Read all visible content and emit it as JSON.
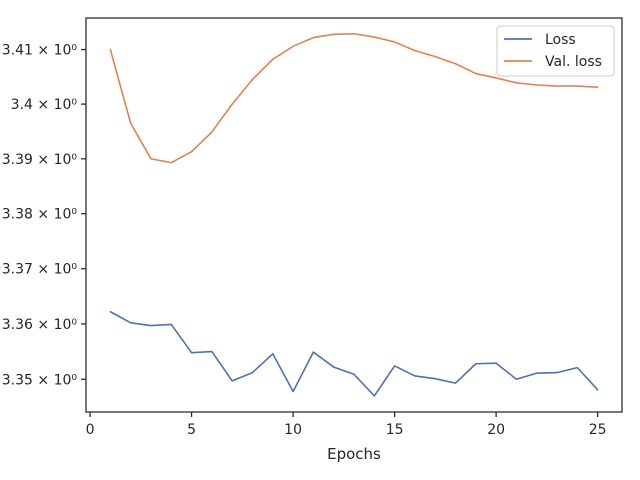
{
  "chart_data": {
    "type": "line",
    "xlabel": "Epochs",
    "ylabel": "",
    "xlim": [
      -0.2,
      26.2
    ],
    "ylim": [
      3.3441,
      3.4158
    ],
    "yscale": "log",
    "grid": false,
    "legend_position": "top-right",
    "x_ticks": [
      {
        "value": 0,
        "label": "0"
      },
      {
        "value": 5,
        "label": "5"
      },
      {
        "value": 10,
        "label": "10"
      },
      {
        "value": 15,
        "label": "15"
      },
      {
        "value": 20,
        "label": "20"
      },
      {
        "value": 25,
        "label": "25"
      }
    ],
    "y_ticks": [
      {
        "value": 3.35,
        "label": "3.35 × 10⁰"
      },
      {
        "value": 3.36,
        "label": "3.36 × 10⁰"
      },
      {
        "value": 3.37,
        "label": "3.37 × 10⁰"
      },
      {
        "value": 3.38,
        "label": "3.38 × 10⁰"
      },
      {
        "value": 3.39,
        "label": "3.39 × 10⁰"
      },
      {
        "value": 3.4,
        "label": "3.4 × 10⁰"
      },
      {
        "value": 3.41,
        "label": "3.41 × 10⁰"
      }
    ],
    "x": [
      1,
      2,
      3,
      4,
      5,
      6,
      7,
      8,
      9,
      10,
      11,
      12,
      13,
      14,
      15,
      16,
      17,
      18,
      19,
      20,
      21,
      22,
      23,
      24,
      25
    ],
    "series": [
      {
        "name": "Loss",
        "color": "#4c72b0",
        "values": [
          3.3622,
          3.3602,
          3.3597,
          3.3599,
          3.3548,
          3.355,
          3.3497,
          3.3512,
          3.3546,
          3.3478,
          3.3549,
          3.3522,
          3.3509,
          3.347,
          3.3524,
          3.3506,
          3.3501,
          3.3493,
          3.3528,
          3.3529,
          3.35,
          3.3511,
          3.3512,
          3.3521,
          3.3481
        ]
      },
      {
        "name": "Val. loss",
        "color": "#dd8452",
        "values": [
          3.41,
          3.3965,
          3.39,
          3.3893,
          3.3913,
          3.3949,
          3.4,
          3.4045,
          3.4082,
          3.4106,
          3.4122,
          3.4128,
          3.4129,
          3.4123,
          3.4114,
          3.4098,
          3.4087,
          3.4074,
          3.4056,
          3.4048,
          3.4039,
          3.4035,
          3.4033,
          3.4033,
          3.4031
        ]
      }
    ]
  }
}
